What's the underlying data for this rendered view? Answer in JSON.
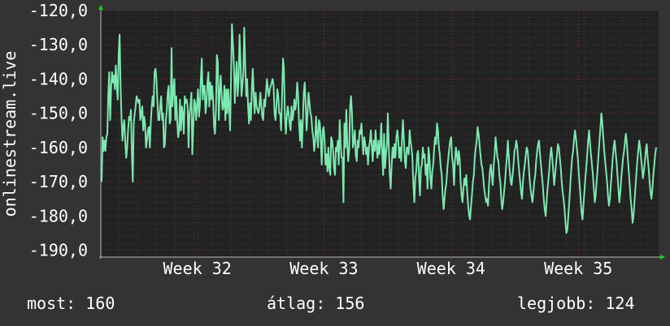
{
  "chart_data": {
    "type": "line",
    "ylabel": "onlinestream.live",
    "ylim": [
      -192,
      -120
    ],
    "y_ticks": [
      -120,
      -130,
      -140,
      -150,
      -160,
      -170,
      -180,
      -190
    ],
    "y_tick_labels": [
      "-120,0",
      "-130,0",
      "-140,0",
      "-150,0",
      "-160,0",
      "-170,0",
      "-180,0",
      "-190,0"
    ],
    "x_ticks": [
      {
        "label": "Week 32",
        "pos": 0.173
      },
      {
        "label": "Week 33",
        "pos": 0.4
      },
      {
        "label": "Week 34",
        "pos": 0.628
      },
      {
        "label": "Week 35",
        "pos": 0.856
      }
    ],
    "grid": true,
    "series": [
      {
        "values": [
          -170,
          -157,
          -161,
          -158,
          -161,
          -157,
          -156,
          -145,
          -138,
          -152,
          -143,
          -138,
          -141,
          -139,
          -143,
          -136,
          -142,
          -146,
          -133,
          -127,
          -141,
          -151,
          -158,
          -154,
          -152,
          -158,
          -163,
          -160,
          -155,
          -151,
          -152,
          -149,
          -162,
          -170,
          -153,
          -150,
          -148,
          -145,
          -146,
          -147,
          -146,
          -152,
          -150,
          -148,
          -155,
          -151,
          -153,
          -160,
          -158,
          -155,
          -154,
          -160,
          -153,
          -148,
          -145,
          -148,
          -138,
          -137,
          -140,
          -146,
          -152,
          -152,
          -148,
          -145,
          -152,
          -150,
          -160,
          -159,
          -152,
          -149,
          -144,
          -142,
          -153,
          -152,
          -131,
          -148,
          -143,
          -140,
          -152,
          -145,
          -152,
          -157,
          -155,
          -146,
          -155,
          -148,
          -150,
          -156,
          -145,
          -147,
          -146,
          -148,
          -160,
          -150,
          -148,
          -144,
          -162,
          -154,
          -146,
          -147,
          -152,
          -148,
          -143,
          -151,
          -148,
          -140,
          -134,
          -146,
          -142,
          -142,
          -150,
          -147,
          -141,
          -138,
          -148,
          -141,
          -146,
          -142,
          -146,
          -154,
          -156,
          -149,
          -133,
          -135,
          -152,
          -144,
          -139,
          -145,
          -149,
          -148,
          -142,
          -152,
          -143,
          -150,
          -143,
          -148,
          -155,
          -139,
          -124,
          -130,
          -136,
          -147,
          -140,
          -135,
          -145,
          -140,
          -127,
          -135,
          -145,
          -142,
          -138,
          -125,
          -136,
          -145,
          -140,
          -148,
          -153,
          -147,
          -152,
          -143,
          -137,
          -145,
          -150,
          -144,
          -148,
          -149,
          -150,
          -148,
          -144,
          -148,
          -151,
          -152,
          -146,
          -148,
          -144,
          -140,
          -143,
          -145,
          -143,
          -142,
          -141,
          -140,
          -142,
          -150,
          -152,
          -148,
          -143,
          -145,
          -150,
          -150,
          -155,
          -145,
          -134,
          -137,
          -151,
          -156,
          -151,
          -148,
          -150,
          -153,
          -155,
          -148,
          -152,
          -150,
          -146,
          -149,
          -147,
          -141,
          -145,
          -153,
          -158,
          -152,
          -160,
          -152,
          -144,
          -141,
          -148,
          -155,
          -150,
          -144,
          -147,
          -150,
          -151,
          -155,
          -157,
          -161,
          -158,
          -151,
          -156,
          -160,
          -152,
          -153,
          -158,
          -165,
          -155,
          -154,
          -158,
          -165,
          -162,
          -167,
          -160,
          -166,
          -168,
          -157,
          -158,
          -161,
          -166,
          -168,
          -160,
          -161,
          -158,
          -165,
          -152,
          -159,
          -163,
          -163,
          -176,
          -153,
          -160,
          -149,
          -159,
          -164,
          -161,
          -148,
          -145,
          -150,
          -160,
          -158,
          -155,
          -162,
          -164,
          -158,
          -160,
          -155,
          -156,
          -153,
          -158,
          -162,
          -157,
          -159,
          -162,
          -160,
          -165,
          -160,
          -158,
          -155,
          -160,
          -164,
          -158,
          -161,
          -155,
          -160,
          -163,
          -158,
          -162,
          -159,
          -153,
          -162,
          -168,
          -156,
          -166,
          -162,
          -159,
          -150,
          -160,
          -168,
          -172,
          -165,
          -160,
          -163,
          -159,
          -163,
          -157,
          -155,
          -158,
          -163,
          -160,
          -164,
          -157,
          -152,
          -158,
          -164,
          -166,
          -160,
          -160,
          -162,
          -155,
          -158,
          -160,
          -163,
          -171,
          -176,
          -169,
          -167,
          -162,
          -161,
          -169,
          -174,
          -166,
          -165,
          -160,
          -163,
          -162,
          -168,
          -165,
          -172,
          -160,
          -163,
          -169,
          -172,
          -167,
          -165,
          -160,
          -157,
          -159,
          -153,
          -155,
          -160,
          -162,
          -166,
          -168,
          -174,
          -178,
          -175,
          -172,
          -170,
          -166,
          -163,
          -160,
          -158,
          -157,
          -163,
          -165,
          -171,
          -164,
          -160,
          -162,
          -165,
          -161,
          -163,
          -170,
          -174,
          -176,
          -172,
          -169,
          -171,
          -168,
          -173,
          -177,
          -180,
          -181,
          -177,
          -174,
          -170,
          -168,
          -163,
          -160,
          -158,
          -154,
          -156,
          -159,
          -162,
          -165,
          -166,
          -169,
          -172,
          -174,
          -176,
          -175,
          -177,
          -171,
          -167,
          -165,
          -168,
          -171,
          -165,
          -162,
          -157,
          -160,
          -163,
          -164,
          -168,
          -170,
          -175,
          -178,
          -176,
          -173,
          -170,
          -166,
          -163,
          -158,
          -163,
          -167,
          -170,
          -171,
          -168,
          -165,
          -161,
          -160,
          -158,
          -160,
          -164,
          -167,
          -170,
          -173,
          -175,
          -170,
          -167,
          -165,
          -162,
          -160,
          -161,
          -165,
          -169,
          -172,
          -174,
          -176,
          -173,
          -170,
          -168,
          -164,
          -161,
          -159,
          -158,
          -162,
          -165,
          -168,
          -171,
          -175,
          -178,
          -180,
          -176,
          -172,
          -169,
          -166,
          -162,
          -160,
          -163,
          -167,
          -171,
          -168,
          -165,
          -162,
          -159,
          -160,
          -163,
          -166,
          -170,
          -173,
          -175,
          -178,
          -182,
          -185,
          -184,
          -180,
          -176,
          -171,
          -167,
          -163,
          -161,
          -158,
          -155,
          -157,
          -160,
          -163,
          -167,
          -171,
          -175,
          -179,
          -181,
          -177,
          -173,
          -169,
          -166,
          -162,
          -158,
          -155,
          -159,
          -162,
          -165,
          -168,
          -172,
          -176,
          -174,
          -170,
          -166,
          -162,
          -158,
          -154,
          -150,
          -153,
          -157,
          -161,
          -164,
          -167,
          -170,
          -174,
          -177,
          -175,
          -171,
          -167,
          -163,
          -160,
          -158,
          -161,
          -164,
          -168,
          -172,
          -176,
          -173,
          -169,
          -166,
          -163,
          -161,
          -158,
          -156,
          -159,
          -163,
          -167,
          -171,
          -175,
          -178,
          -182,
          -180,
          -176,
          -172,
          -168,
          -164,
          -161,
          -158,
          -160,
          -163,
          -166,
          -169,
          -167,
          -164,
          -161,
          -159,
          -163,
          -166,
          -170,
          -173,
          -175,
          -172,
          -168,
          -165,
          -162,
          -160
        ],
        "color": "#7de8b0"
      }
    ],
    "stats": {
      "current": "most: 160",
      "average": "átlag: 156",
      "max": "legjobb: 124"
    }
  },
  "colors": {
    "background": "#333333",
    "plot_background": "#222222",
    "grid_minor": "#3c3c3c",
    "grid_major": "#5a2a2a",
    "line": "#7de8b0",
    "arrow": "#22cc22"
  }
}
